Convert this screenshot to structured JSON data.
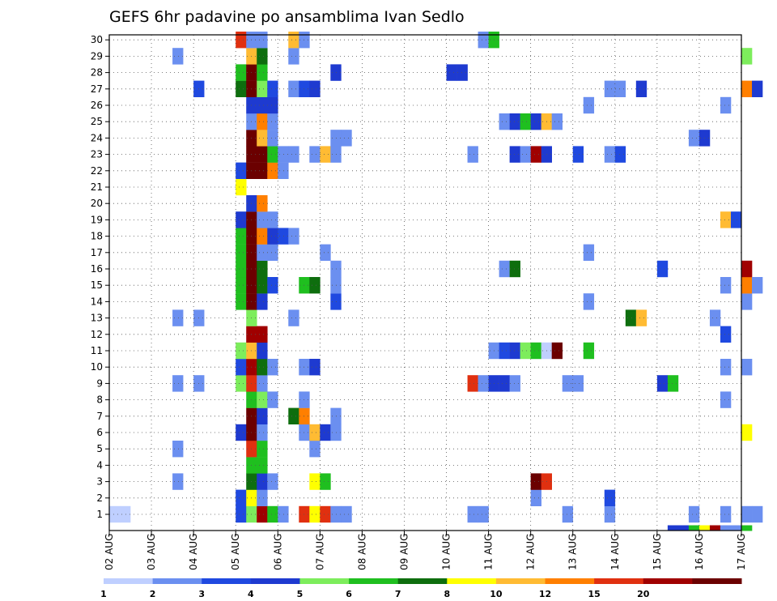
{
  "chart_data": {
    "type": "heatmap",
    "title": "GEFS 6hr padavine po ansamblima Ivan Sedlo",
    "xlabel": "",
    "ylabel": "",
    "x_ticks": [
      "02 AUG",
      "03 AUG",
      "04 AUG",
      "05 AUG",
      "06 AUG",
      "07 AUG",
      "08 AUG",
      "09 AUG",
      "10 AUG",
      "11 AUG",
      "12 AUG",
      "13 AUG",
      "14 AUG",
      "15 AUG",
      "16 AUG",
      "17 AUG"
    ],
    "y_ticks": [
      "1",
      "2",
      "3",
      "4",
      "5",
      "6",
      "7",
      "8",
      "9",
      "10",
      "11",
      "12",
      "13",
      "14",
      "15",
      "16",
      "17",
      "18",
      "19",
      "20",
      "21",
      "22",
      "23",
      "24",
      "25",
      "26",
      "27",
      "28",
      "29",
      "30"
    ],
    "x_unit": "6-hour step from 02 AUG 00Z",
    "y_unit": "ensemble member (row 0 = bottom control row)",
    "grid": true,
    "legend_position": "bottom",
    "levels": [
      "1",
      "2",
      "3",
      "4",
      "5",
      "6",
      "7",
      "8",
      "10",
      "12",
      "15",
      "20"
    ],
    "colors": [
      "#bfcfff",
      "#6b8ff0",
      "#1f49e0",
      "#1e3ad0",
      "#7ded5c",
      "#1fbf1f",
      "#0e6e0e",
      "#ffff00",
      "#ffbb33",
      "#ff7f00",
      "#e03010",
      "#a00000",
      "#6b0000"
    ],
    "cells": [
      [
        0,
        1,
        0
      ],
      [
        1,
        1,
        0
      ],
      [
        36,
        11,
        1
      ],
      [
        37,
        11,
        2
      ],
      [
        38,
        11,
        3
      ],
      [
        39,
        11,
        4
      ],
      [
        40,
        11,
        5
      ],
      [
        41,
        11,
        0
      ],
      [
        42,
        11,
        12
      ],
      [
        6,
        3,
        1
      ],
      [
        6,
        5,
        1
      ],
      [
        6,
        9,
        1
      ],
      [
        6,
        13,
        1
      ],
      [
        6,
        29,
        1
      ],
      [
        8,
        9,
        1
      ],
      [
        8,
        13,
        1
      ],
      [
        8,
        27,
        2
      ],
      [
        12,
        1,
        2
      ],
      [
        12,
        2,
        2
      ],
      [
        12,
        6,
        3
      ],
      [
        12,
        9,
        4
      ],
      [
        12,
        10,
        2
      ],
      [
        12,
        11,
        4
      ],
      [
        12,
        14,
        5
      ],
      [
        12,
        15,
        5
      ],
      [
        12,
        16,
        5
      ],
      [
        12,
        17,
        5
      ],
      [
        12,
        18,
        5
      ],
      [
        12,
        19,
        3
      ],
      [
        12,
        21,
        7
      ],
      [
        12,
        22,
        2
      ],
      [
        12,
        27,
        6
      ],
      [
        12,
        28,
        5
      ],
      [
        12,
        30,
        10
      ],
      [
        13,
        1,
        4
      ],
      [
        13,
        2,
        7
      ],
      [
        13,
        3,
        6
      ],
      [
        13,
        4,
        5
      ],
      [
        13,
        5,
        10
      ],
      [
        13,
        6,
        12
      ],
      [
        13,
        7,
        12
      ],
      [
        13,
        8,
        5
      ],
      [
        13,
        9,
        10
      ],
      [
        13,
        10,
        11
      ],
      [
        13,
        11,
        8
      ],
      [
        13,
        12,
        11
      ],
      [
        13,
        13,
        4
      ],
      [
        13,
        14,
        12
      ],
      [
        13,
        15,
        12
      ],
      [
        13,
        16,
        12
      ],
      [
        13,
        17,
        12
      ],
      [
        13,
        18,
        12
      ],
      [
        13,
        19,
        12
      ],
      [
        13,
        20,
        3
      ],
      [
        13,
        22,
        12
      ],
      [
        13,
        23,
        12
      ],
      [
        13,
        24,
        12
      ],
      [
        13,
        25,
        1
      ],
      [
        13,
        26,
        3
      ],
      [
        13,
        27,
        12
      ],
      [
        13,
        28,
        12
      ],
      [
        13,
        29,
        8
      ],
      [
        13,
        30,
        1
      ],
      [
        14,
        1,
        11
      ],
      [
        14,
        2,
        1
      ],
      [
        14,
        3,
        3
      ],
      [
        14,
        4,
        5
      ],
      [
        14,
        5,
        5
      ],
      [
        14,
        6,
        1
      ],
      [
        14,
        7,
        3
      ],
      [
        14,
        8,
        4
      ],
      [
        14,
        9,
        1
      ],
      [
        14,
        10,
        6
      ],
      [
        14,
        11,
        3
      ],
      [
        14,
        12,
        11
      ],
      [
        14,
        14,
        3
      ],
      [
        14,
        15,
        6
      ],
      [
        14,
        16,
        6
      ],
      [
        14,
        17,
        1
      ],
      [
        14,
        18,
        9
      ],
      [
        14,
        19,
        1
      ],
      [
        14,
        20,
        9
      ],
      [
        14,
        22,
        12
      ],
      [
        14,
        23,
        12
      ],
      [
        14,
        24,
        8
      ],
      [
        14,
        25,
        9
      ],
      [
        14,
        26,
        3
      ],
      [
        14,
        27,
        4
      ],
      [
        14,
        28,
        5
      ],
      [
        14,
        29,
        6
      ],
      [
        14,
        30,
        1
      ],
      [
        15,
        1,
        5
      ],
      [
        15,
        3,
        1
      ],
      [
        15,
        8,
        1
      ],
      [
        15,
        10,
        1
      ],
      [
        15,
        15,
        2
      ],
      [
        15,
        17,
        1
      ],
      [
        15,
        18,
        3
      ],
      [
        15,
        19,
        1
      ],
      [
        15,
        22,
        9
      ],
      [
        15,
        23,
        5
      ],
      [
        15,
        24,
        1
      ],
      [
        15,
        25,
        1
      ],
      [
        15,
        26,
        3
      ],
      [
        15,
        27,
        2
      ],
      [
        16,
        1,
        1
      ],
      [
        16,
        18,
        2
      ],
      [
        16,
        22,
        1
      ],
      [
        16,
        23,
        1
      ],
      [
        17,
        7,
        6
      ],
      [
        17,
        13,
        1
      ],
      [
        17,
        18,
        1
      ],
      [
        17,
        23,
        1
      ],
      [
        17,
        27,
        1
      ],
      [
        17,
        29,
        1
      ],
      [
        17,
        30,
        8
      ],
      [
        18,
        1,
        10
      ],
      [
        18,
        6,
        1
      ],
      [
        18,
        7,
        9
      ],
      [
        18,
        8,
        1
      ],
      [
        18,
        10,
        1
      ],
      [
        18,
        15,
        5
      ],
      [
        18,
        27,
        2
      ],
      [
        18,
        30,
        1
      ],
      [
        19,
        1,
        7
      ],
      [
        19,
        3,
        7
      ],
      [
        19,
        5,
        1
      ],
      [
        19,
        6,
        8
      ],
      [
        19,
        10,
        3
      ],
      [
        19,
        15,
        6
      ],
      [
        19,
        23,
        1
      ],
      [
        19,
        27,
        3
      ],
      [
        20,
        1,
        10
      ],
      [
        20,
        3,
        5
      ],
      [
        20,
        6,
        3
      ],
      [
        20,
        17,
        1
      ],
      [
        20,
        23,
        8
      ],
      [
        21,
        1,
        1
      ],
      [
        21,
        6,
        1
      ],
      [
        21,
        7,
        1
      ],
      [
        21,
        14,
        2
      ],
      [
        21,
        15,
        1
      ],
      [
        21,
        16,
        1
      ],
      [
        21,
        23,
        1
      ],
      [
        21,
        24,
        1
      ],
      [
        21,
        28,
        3
      ],
      [
        22,
        1,
        1
      ],
      [
        22,
        24,
        1
      ],
      [
        32,
        28,
        3
      ],
      [
        33,
        28,
        3
      ],
      [
        34,
        1,
        1
      ],
      [
        34,
        9,
        10
      ],
      [
        34,
        23,
        1
      ],
      [
        35,
        1,
        1
      ],
      [
        35,
        9,
        1
      ],
      [
        35,
        30,
        1
      ],
      [
        36,
        9,
        3
      ],
      [
        36,
        30,
        5
      ],
      [
        37,
        9,
        3
      ],
      [
        37,
        16,
        1
      ],
      [
        37,
        25,
        1
      ],
      [
        38,
        9,
        1
      ],
      [
        38,
        16,
        6
      ],
      [
        38,
        23,
        3
      ],
      [
        38,
        25,
        3
      ],
      [
        39,
        23,
        1
      ],
      [
        39,
        25,
        5
      ],
      [
        40,
        2,
        1
      ],
      [
        40,
        3,
        12
      ],
      [
        40,
        23,
        11
      ],
      [
        40,
        25,
        3
      ],
      [
        41,
        3,
        10
      ],
      [
        41,
        23,
        3
      ],
      [
        41,
        25,
        8
      ],
      [
        42,
        25,
        1
      ],
      [
        43,
        1,
        1
      ],
      [
        43,
        9,
        1
      ],
      [
        44,
        9,
        1
      ],
      [
        44,
        23,
        2
      ],
      [
        45,
        11,
        5
      ],
      [
        45,
        14,
        1
      ],
      [
        45,
        17,
        1
      ],
      [
        45,
        26,
        1
      ],
      [
        47,
        1,
        1
      ],
      [
        47,
        2,
        2
      ],
      [
        47,
        23,
        1
      ],
      [
        47,
        27,
        1
      ],
      [
        48,
        23,
        2
      ],
      [
        48,
        27,
        1
      ],
      [
        49,
        13,
        6
      ],
      [
        50,
        13,
        8
      ],
      [
        50,
        27,
        3
      ],
      [
        52,
        9,
        3
      ],
      [
        53,
        9,
        5
      ],
      [
        52,
        16,
        2
      ],
      [
        55,
        1,
        1
      ],
      [
        55,
        24,
        1
      ],
      [
        56,
        24,
        3
      ],
      [
        57,
        13,
        1
      ],
      [
        58,
        1,
        1
      ],
      [
        58,
        8,
        1
      ],
      [
        58,
        10,
        1
      ],
      [
        58,
        12,
        2
      ],
      [
        58,
        15,
        1
      ],
      [
        58,
        19,
        8
      ],
      [
        59,
        19,
        2
      ],
      [
        58,
        26,
        1
      ],
      [
        60,
        1,
        1
      ],
      [
        60,
        6,
        7
      ],
      [
        60,
        10,
        1
      ],
      [
        60,
        14,
        1
      ],
      [
        60,
        15,
        9
      ],
      [
        60,
        16,
        11
      ],
      [
        60,
        27,
        9
      ],
      [
        60,
        29,
        4
      ],
      [
        61,
        1,
        1
      ],
      [
        61,
        15,
        1
      ],
      [
        61,
        27,
        3
      ],
      [
        53,
        0,
        3
      ],
      [
        54,
        0,
        3
      ],
      [
        55,
        0,
        5
      ],
      [
        56,
        0,
        7
      ],
      [
        57,
        0,
        11
      ],
      [
        58,
        0,
        1
      ],
      [
        59,
        0,
        1
      ],
      [
        60,
        0,
        5
      ]
    ]
  }
}
